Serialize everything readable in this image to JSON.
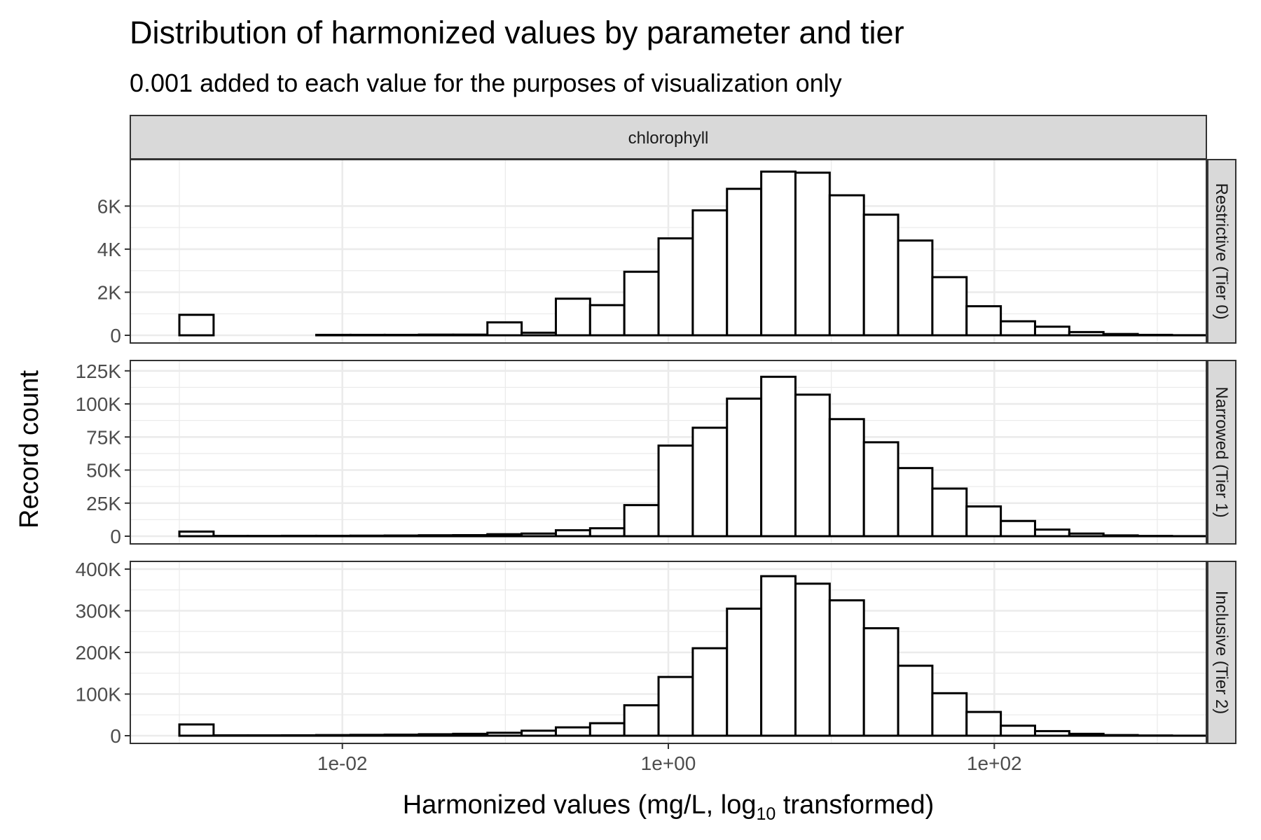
{
  "chart_data": {
    "type": "bar",
    "title": "Distribution of harmonized values by parameter and tier",
    "subtitle": "0.001 added to each value for the purposes of visualization only",
    "xlabel": "Harmonized values (mg/L,  log",
    "xlabel_subscript": "10",
    "xlabel_suffix": "  transformed)",
    "ylabel": "Record count",
    "facet_column": "chlorophyll",
    "x_scale": "log10",
    "x_ticks": [
      0.01,
      1,
      100
    ],
    "x_tick_labels": [
      "1e-02",
      "1e+00",
      "1e+02"
    ],
    "x_range": [
      0.0005,
      2000
    ],
    "bin_edges_log10": [
      -3.0,
      -2.79,
      -2.58,
      -2.37,
      -2.16,
      -1.95,
      -1.74,
      -1.53,
      -1.32,
      -1.11,
      -0.9,
      -0.69,
      -0.48,
      -0.27,
      -0.06,
      0.15,
      0.36,
      0.57,
      0.78,
      0.99,
      1.2,
      1.41,
      1.62,
      1.83,
      2.04,
      2.25,
      2.46,
      2.67,
      2.88,
      3.09,
      3.3
    ],
    "grid": true,
    "panels": [
      {
        "strip": "Restrictive (Tier 0)",
        "ylim": [
          0,
          7800
        ],
        "y_ticks": [
          0,
          2000,
          4000,
          6000
        ],
        "y_tick_labels": [
          "0",
          "2K",
          "4K",
          "6K"
        ],
        "values": [
          950,
          0,
          0,
          0,
          20,
          20,
          20,
          30,
          30,
          600,
          120,
          1700,
          1400,
          2950,
          4500,
          5800,
          6800,
          7600,
          7550,
          6500,
          5600,
          4400,
          2700,
          1350,
          650,
          400,
          150,
          60,
          20,
          5
        ]
      },
      {
        "strip": "Narrowed (Tier 1)",
        "ylim": [
          0,
          127000
        ],
        "y_ticks": [
          0,
          25000,
          50000,
          75000,
          100000,
          125000
        ],
        "y_tick_labels": [
          "0",
          "25K",
          "50K",
          "75K",
          "100K",
          "125K"
        ],
        "values": [
          3500,
          200,
          200,
          300,
          300,
          400,
          500,
          700,
          800,
          1500,
          2000,
          4500,
          6000,
          23500,
          68500,
          82000,
          104000,
          120500,
          107000,
          88500,
          71000,
          51500,
          36000,
          22500,
          11500,
          5000,
          2000,
          600,
          200,
          50
        ]
      },
      {
        "strip": "Inclusive (Tier 2)",
        "ylim": [
          0,
          400000
        ],
        "y_ticks": [
          0,
          100000,
          200000,
          300000,
          400000
        ],
        "y_tick_labels": [
          "0",
          "100K",
          "200K",
          "300K",
          "400K"
        ],
        "values": [
          27000,
          800,
          800,
          1000,
          1500,
          2000,
          2500,
          3500,
          4500,
          7000,
          12000,
          20000,
          30000,
          73000,
          141000,
          210000,
          305000,
          383000,
          365000,
          325000,
          258000,
          168000,
          102000,
          57000,
          24000,
          11000,
          4500,
          1500,
          500,
          100
        ]
      }
    ]
  }
}
